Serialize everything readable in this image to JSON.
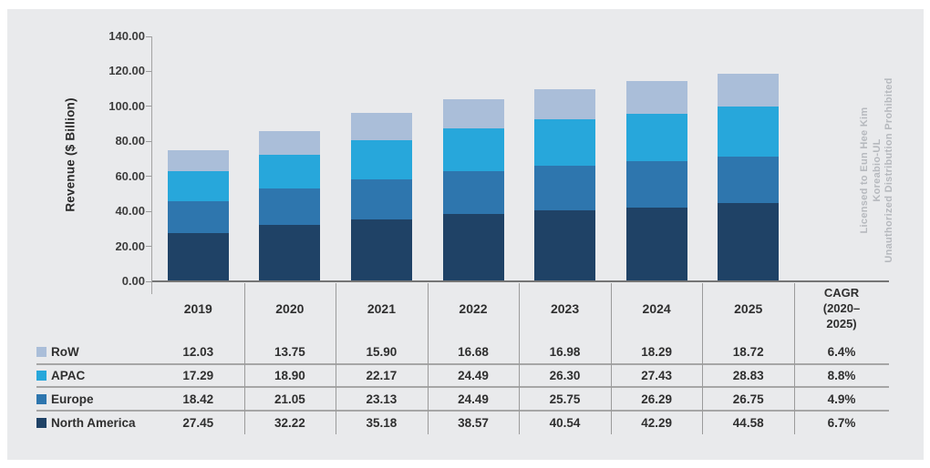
{
  "watermark": {
    "lines": [
      "Licensed to Eun Hee Kim",
      "Koreabio-UL",
      "Unauthorized Distribution Prohibited"
    ]
  },
  "chart_data": {
    "type": "bar",
    "stacked": true,
    "title": "",
    "xlabel": "",
    "ylabel": "Revenue ($ Billion)",
    "ylim": [
      0,
      140
    ],
    "ytick_step": 20,
    "ytick_labels": [
      "0.00",
      "20.00",
      "40.00",
      "60.00",
      "80.00",
      "100.00",
      "120.00",
      "140.00"
    ],
    "grid": false,
    "legend_position": "table-left",
    "categories": [
      "2019",
      "2020",
      "2021",
      "2022",
      "2023",
      "2024",
      "2025"
    ],
    "series": [
      {
        "name": "RoW",
        "color": "#aabed9",
        "values": [
          12.03,
          13.75,
          15.9,
          16.68,
          16.98,
          18.29,
          18.72
        ],
        "cagr": "6.4%"
      },
      {
        "name": "APAC",
        "color": "#27a7db",
        "values": [
          17.29,
          18.9,
          22.17,
          24.49,
          26.3,
          27.43,
          28.83
        ],
        "cagr": "8.8%"
      },
      {
        "name": "Europe",
        "color": "#2e76ae",
        "values": [
          18.42,
          21.05,
          23.13,
          24.49,
          25.75,
          26.29,
          26.75
        ],
        "cagr": "4.9%"
      },
      {
        "name": "North America",
        "color": "#1f4266",
        "values": [
          27.45,
          32.22,
          35.18,
          38.57,
          40.54,
          42.29,
          44.58
        ],
        "cagr": "6.7%"
      }
    ],
    "stack_order_bottom_to_top": [
      "North America",
      "Europe",
      "APAC",
      "RoW"
    ],
    "cagr_header_lines": [
      "CAGR",
      "(2020–",
      "2025)"
    ],
    "value_decimals": 2
  }
}
